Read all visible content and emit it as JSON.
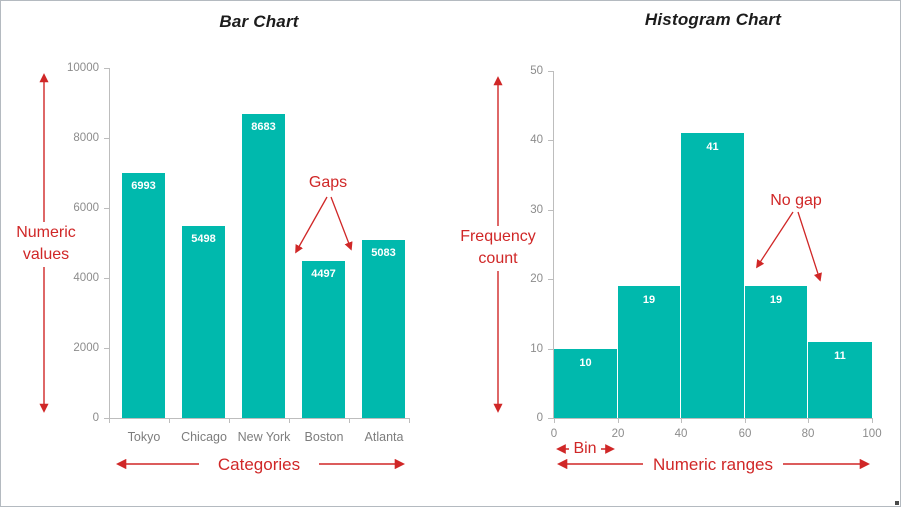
{
  "colors": {
    "bar_fill": "#00b9ad",
    "annotation_red": "#d02727",
    "axis_line": "#bdbdbd",
    "ytick_text": "#8c8c8c",
    "category_text": "#7d7d7d",
    "data_label_text": "#ffffff",
    "title_text": "#1c1c1c"
  },
  "chart_data": [
    {
      "type": "bar",
      "title": "Bar Chart",
      "categories": [
        "Tokyo",
        "Chicago",
        "New York",
        "Boston",
        "Atlanta"
      ],
      "values": [
        6993,
        5498,
        8683,
        4497,
        5083
      ],
      "ylim": [
        0,
        10000
      ],
      "yticks": [
        0,
        2000,
        4000,
        6000,
        8000,
        10000
      ],
      "grid": false,
      "legend": false,
      "bar_color": "#00b9ad",
      "data_labels_inside": true,
      "annotations": {
        "y_axis_label": "Numeric values",
        "x_axis_label": "Categories",
        "gaps_label": "Gaps"
      }
    },
    {
      "type": "histogram",
      "title": "Histogram Chart",
      "bin_edges": [
        0,
        20,
        40,
        60,
        80,
        100
      ],
      "x_tick_labels": [
        "0",
        "20",
        "40",
        "60",
        "80",
        "100"
      ],
      "values": [
        10,
        19,
        41,
        19,
        11
      ],
      "ylim": [
        0,
        50
      ],
      "yticks": [
        0,
        10,
        20,
        30,
        40,
        50
      ],
      "grid": false,
      "legend": false,
      "bar_color": "#00b9ad",
      "data_labels_inside": true,
      "annotations": {
        "y_axis_label": "Frequency count",
        "x_axis_label": "Numeric ranges",
        "bin_label": "Bin",
        "no_gap_label": "No gap"
      }
    }
  ]
}
